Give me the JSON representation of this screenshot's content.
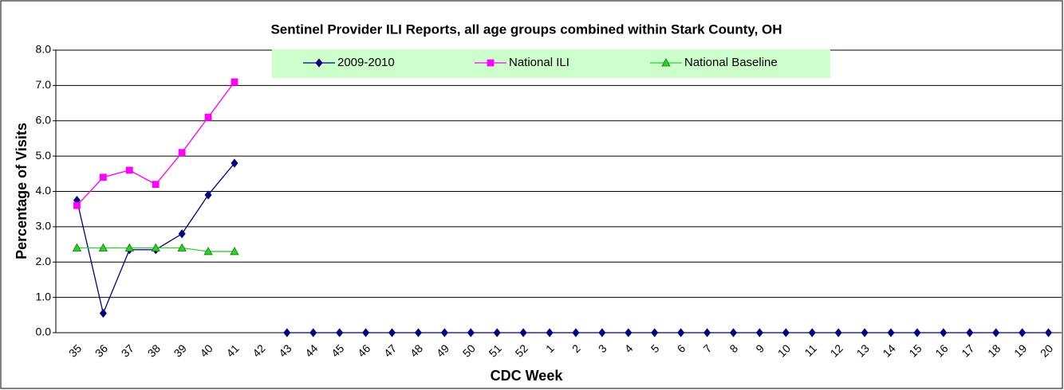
{
  "chart_data": {
    "type": "line",
    "title": "Sentinel Provider ILI Reports, all age groups combined within Stark County, OH",
    "x_label": "CDC Week",
    "y_label": "Percentage of Visits",
    "categories": [
      "35",
      "36",
      "37",
      "38",
      "39",
      "40",
      "41",
      "42",
      "43",
      "44",
      "45",
      "46",
      "47",
      "48",
      "49",
      "50",
      "51",
      "52",
      "1",
      "2",
      "3",
      "4",
      "5",
      "6",
      "7",
      "8",
      "9",
      "10",
      "11",
      "12",
      "13",
      "14",
      "15",
      "16",
      "17",
      "18",
      "19",
      "20"
    ],
    "series": [
      {
        "name": "2009-2010",
        "color": "#000080",
        "marker": "diamond",
        "values": [
          3.75,
          0.55,
          2.35,
          2.35,
          2.8,
          3.9,
          4.8,
          null,
          0,
          0,
          0,
          0,
          0,
          0,
          0,
          0,
          0,
          0,
          0,
          0,
          0,
          0,
          0,
          0,
          0,
          0,
          0,
          0,
          0,
          0,
          0,
          0,
          0,
          0,
          0,
          0,
          0,
          0
        ]
      },
      {
        "name": "National ILI",
        "color": "#ff00ff",
        "marker": "square",
        "values": [
          3.6,
          4.4,
          4.6,
          4.2,
          5.1,
          6.1,
          7.1,
          null,
          null,
          null,
          null,
          null,
          null,
          null,
          null,
          null,
          null,
          null,
          null,
          null,
          null,
          null,
          null,
          null,
          null,
          null,
          null,
          null,
          null,
          null,
          null,
          null,
          null,
          null,
          null,
          null,
          null,
          null
        ]
      },
      {
        "name": "National Baseline",
        "color": "#33cc33",
        "marker": "triangle",
        "values": [
          2.4,
          2.4,
          2.4,
          2.4,
          2.4,
          2.3,
          2.3,
          null,
          null,
          null,
          null,
          null,
          null,
          null,
          null,
          null,
          null,
          null,
          null,
          null,
          null,
          null,
          null,
          null,
          null,
          null,
          null,
          null,
          null,
          null,
          null,
          null,
          null,
          null,
          null,
          null,
          null,
          null
        ]
      }
    ],
    "ylim": [
      0,
      8
    ],
    "yticks": [
      {
        "value": 0,
        "label": "0.0"
      },
      {
        "value": 1,
        "label": "1.0"
      },
      {
        "value": 2,
        "label": "2.0"
      },
      {
        "value": 3,
        "label": "3.0"
      },
      {
        "value": 4,
        "label": "4.0"
      },
      {
        "value": 5,
        "label": "5.0"
      },
      {
        "value": 6,
        "label": "6.0"
      },
      {
        "value": 7,
        "label": "7.0"
      },
      {
        "value": 8,
        "label": "8.0"
      }
    ],
    "grid": true,
    "legend": "top"
  }
}
